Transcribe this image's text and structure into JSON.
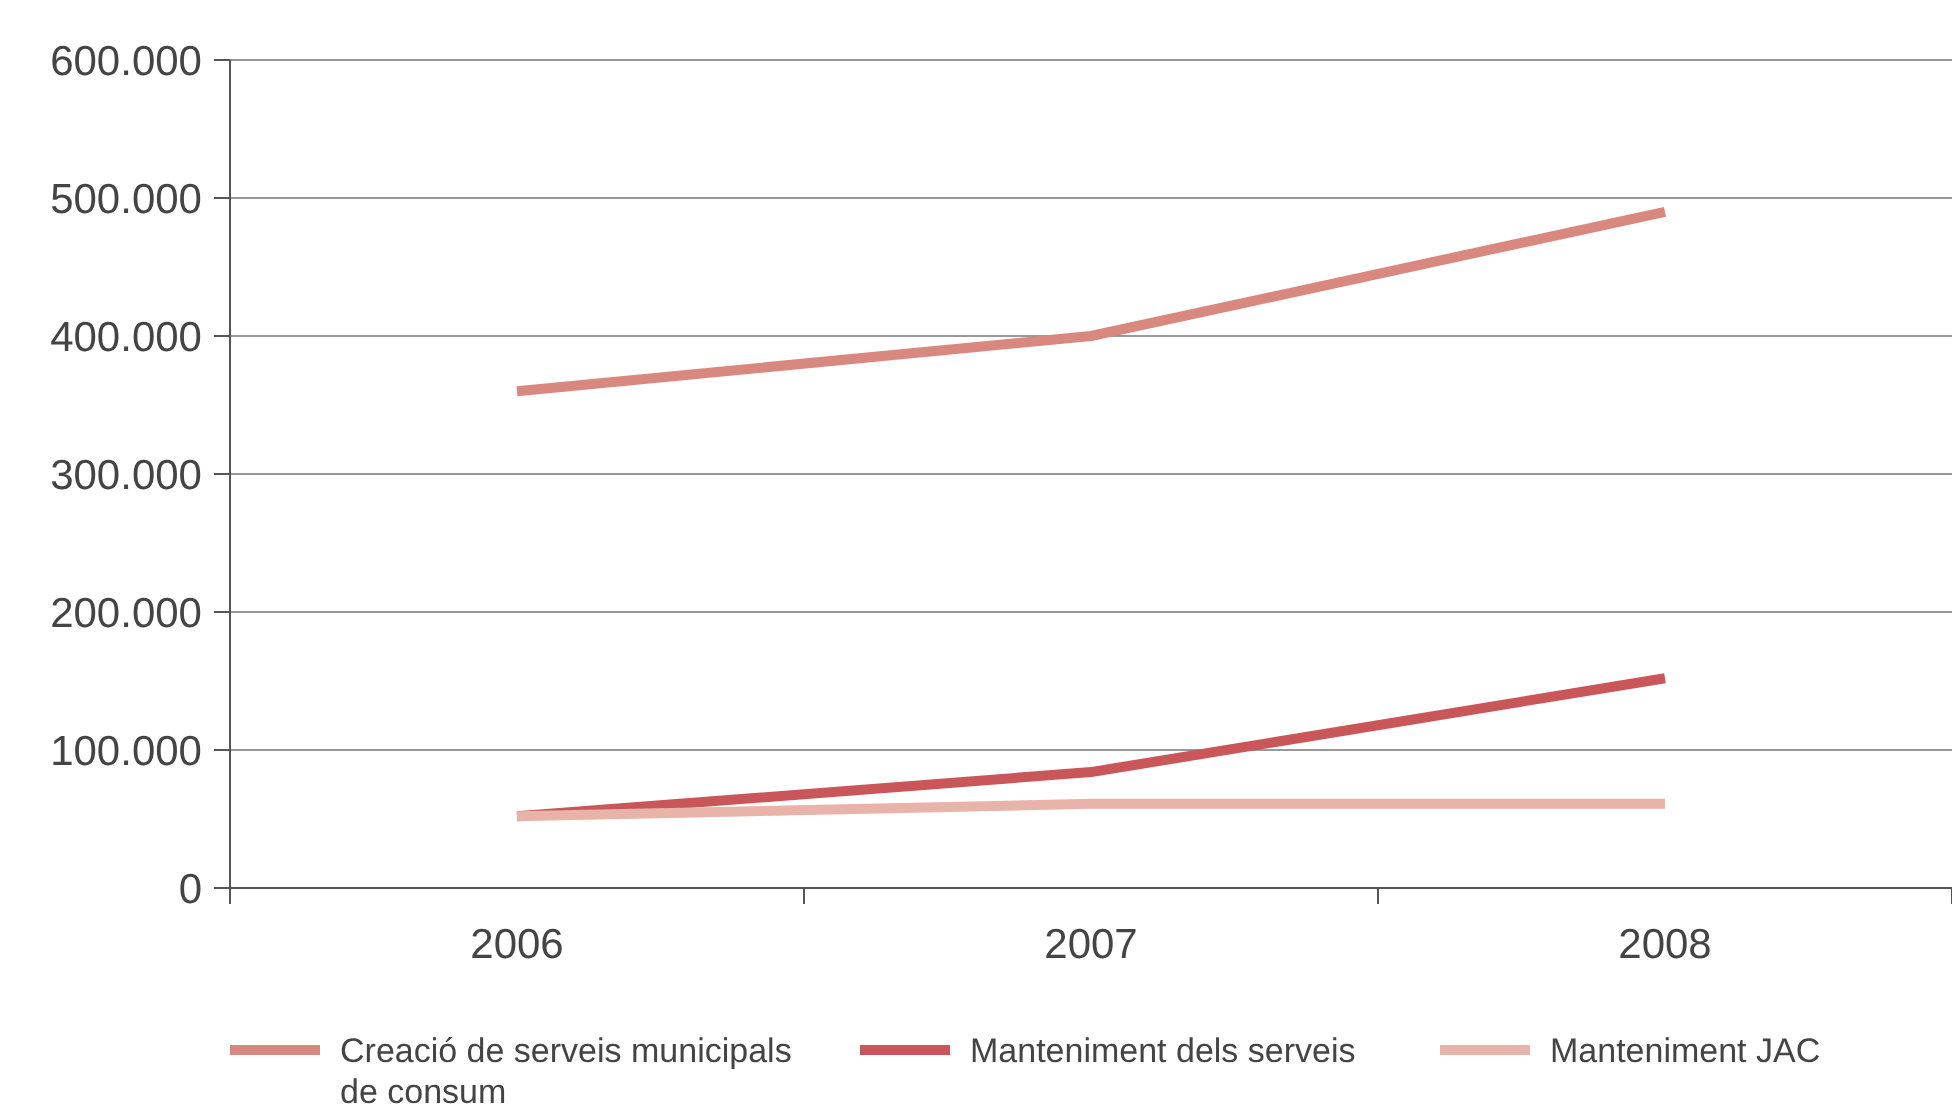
{
  "chart_data": {
    "type": "line",
    "categories": [
      "2006",
      "2007",
      "2008"
    ],
    "series": [
      {
        "name": "Creació de serveis municipals de consum",
        "color": "#d98880",
        "values": [
          360000,
          400000,
          490000
        ]
      },
      {
        "name": "Manteniment dels serveis",
        "color": "#c9575a",
        "values": [
          52000,
          84000,
          152000
        ]
      },
      {
        "name": "Manteniment JAC",
        "color": "#e8b4aa",
        "values": [
          52000,
          61000,
          61000
        ]
      }
    ],
    "ylim": [
      0,
      600000
    ],
    "yticks": [
      {
        "value": 0,
        "label": "0"
      },
      {
        "value": 100000,
        "label": "100.000"
      },
      {
        "value": 200000,
        "label": "200.000"
      },
      {
        "value": 300000,
        "label": "300.000"
      },
      {
        "value": 400000,
        "label": "400.000"
      },
      {
        "value": 500000,
        "label": "500.000"
      },
      {
        "value": 600000,
        "label": "600.000"
      }
    ],
    "grid": "y",
    "legend": "bottom",
    "marker": "none",
    "line_style": "solid"
  }
}
